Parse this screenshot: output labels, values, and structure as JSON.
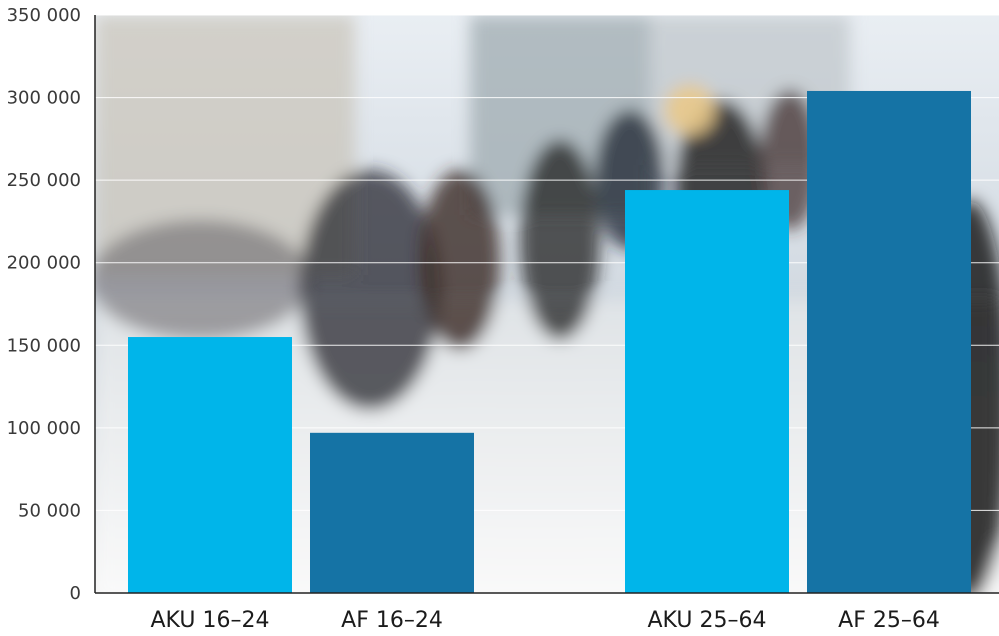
{
  "chart_data": {
    "type": "bar",
    "categories": [
      "AKU 16–24",
      "AF 16–24",
      "AKU 25–64",
      "AF 25–64"
    ],
    "values": [
      155000,
      97000,
      244000,
      304000
    ],
    "yticks": [
      "0",
      "50 000",
      "100 000",
      "150 000",
      "200 000",
      "250 000",
      "300 000",
      "350 000"
    ],
    "ytick_values": [
      0,
      50000,
      100000,
      150000,
      200000,
      250000,
      300000,
      350000
    ],
    "ylim": [
      0,
      350000
    ],
    "grid": true,
    "background_image": "blurred-crowd-street-photo",
    "colors": {
      "AKU": "#00b5ea",
      "AF": "#1573a5",
      "grid": "#ffffff",
      "axis": "#222222"
    },
    "title": "",
    "xlabel": "",
    "ylabel": ""
  }
}
